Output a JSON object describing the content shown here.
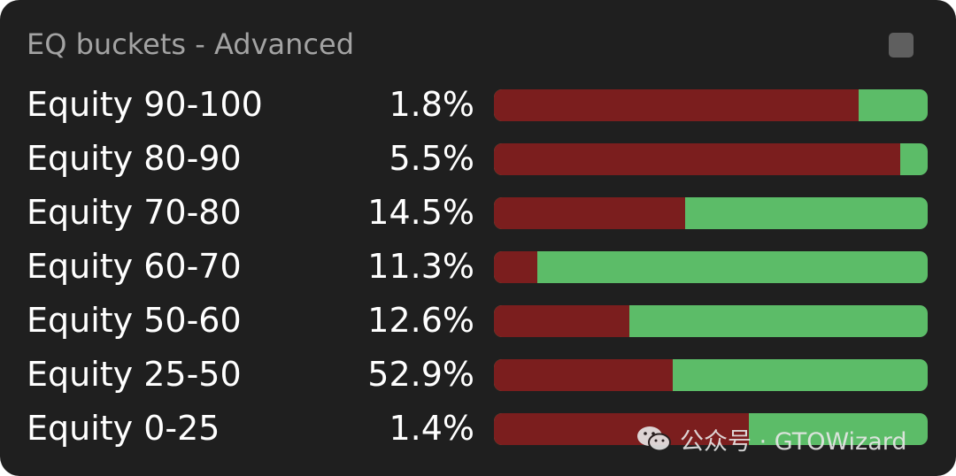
{
  "panel": {
    "title": "EQ buckets - Advanced",
    "checkbox_icon": "square-icon"
  },
  "colors": {
    "background": "#1f1f1f",
    "title": "#a3a3a3",
    "text": "#ffffff",
    "red_segment": "#7b1e1e",
    "green_segment": "#5cbc68",
    "checkbox": "#5f5f5f"
  },
  "buckets": [
    {
      "label": "Equity 90-100",
      "percent": "1.8%",
      "red_fraction": 0.84
    },
    {
      "label": "Equity 80-90",
      "percent": "5.5%",
      "red_fraction": 0.936
    },
    {
      "label": "Equity 70-80",
      "percent": "14.5%",
      "red_fraction": 0.44
    },
    {
      "label": "Equity 60-70",
      "percent": "11.3%",
      "red_fraction": 0.1
    },
    {
      "label": "Equity 50-60",
      "percent": "12.6%",
      "red_fraction": 0.312
    },
    {
      "label": "Equity 25-50",
      "percent": "52.9%",
      "red_fraction": 0.412
    },
    {
      "label": "Equity 0-25",
      "percent": "1.4%",
      "red_fraction": 0.588
    }
  ],
  "watermark": {
    "icon": "wechat-icon",
    "text": "公众号 · GTOWizard"
  }
}
